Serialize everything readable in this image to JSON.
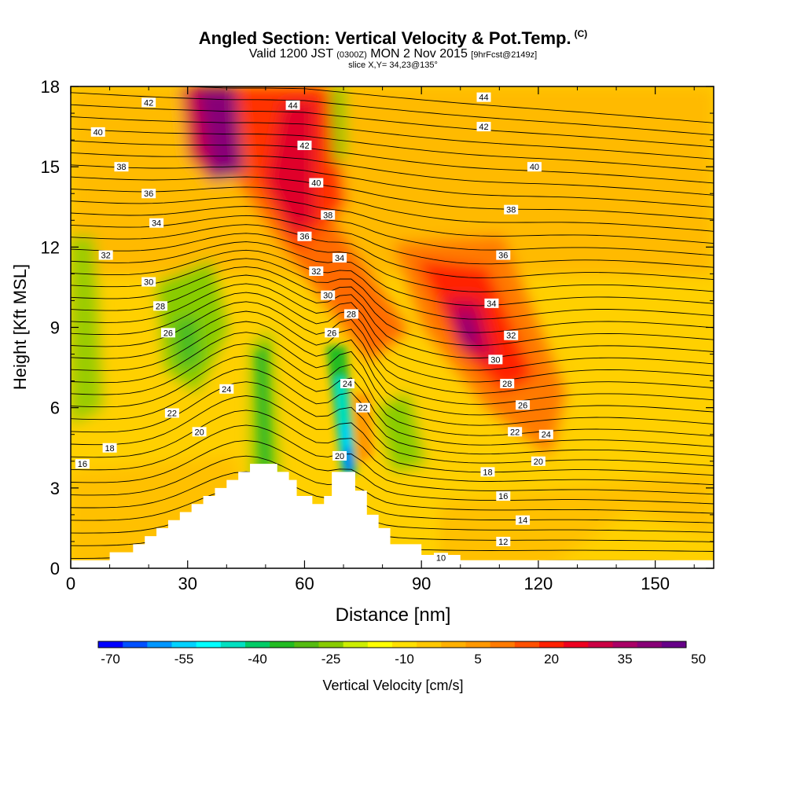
{
  "title": {
    "main": "Angled Section: Vertical Velocity & Pot.Temp.",
    "units_tag": "(C)",
    "valid_prefix": "Valid 1200 JST",
    "valid_utc": "(0300Z)",
    "valid_date": "MON 2 Nov 2015",
    "forecast": "[9hrFcst@2149z]",
    "slice": "slice X,Y= 34,23@135°"
  },
  "chart_data": {
    "type": "heatmap",
    "xlabel": "Distance [nm]",
    "ylabel": "Height [Kft MSL]",
    "xlim": [
      0,
      165
    ],
    "ylim": [
      0,
      18
    ],
    "x_ticks": [
      "0",
      "30",
      "60",
      "90",
      "120",
      "150"
    ],
    "y_ticks": [
      "0",
      "3",
      "6",
      "9",
      "12",
      "15",
      "18"
    ],
    "colorbar": {
      "label": "Vertical Velocity [cm/s]",
      "tick_labels": [
        "-70",
        "-55",
        "-40",
        "-25",
        "-10",
        "5",
        "20",
        "35",
        "50"
      ],
      "colors": [
        "#0000ff",
        "#0050ff",
        "#0096ff",
        "#00d2ff",
        "#00ffff",
        "#00e0c0",
        "#00cc66",
        "#22bb22",
        "#55bb11",
        "#88cc00",
        "#ccee00",
        "#ffff00",
        "#ffe000",
        "#ffc800",
        "#ffb000",
        "#ff9800",
        "#ff7a00",
        "#ff5000",
        "#ff2000",
        "#ee0020",
        "#cc0044",
        "#aa0066",
        "#880077",
        "#660088"
      ]
    },
    "terrain": [
      [
        0,
        0.3
      ],
      [
        10,
        0.3
      ],
      [
        10,
        0.6
      ],
      [
        16,
        0.6
      ],
      [
        16,
        0.9
      ],
      [
        19,
        0.9
      ],
      [
        19,
        1.2
      ],
      [
        22,
        1.2
      ],
      [
        22,
        1.5
      ],
      [
        25,
        1.5
      ],
      [
        25,
        1.8
      ],
      [
        28,
        1.8
      ],
      [
        28,
        2.1
      ],
      [
        31,
        2.1
      ],
      [
        31,
        2.4
      ],
      [
        34,
        2.4
      ],
      [
        34,
        2.7
      ],
      [
        37,
        2.7
      ],
      [
        37,
        3.0
      ],
      [
        40,
        3.0
      ],
      [
        40,
        3.3
      ],
      [
        43,
        3.3
      ],
      [
        43,
        3.6
      ],
      [
        46,
        3.6
      ],
      [
        46,
        3.9
      ],
      [
        53,
        3.9
      ],
      [
        53,
        3.6
      ],
      [
        56,
        3.6
      ],
      [
        56,
        3.3
      ],
      [
        58,
        3.3
      ],
      [
        58,
        2.7
      ],
      [
        62,
        2.7
      ],
      [
        62,
        2.4
      ],
      [
        65,
        2.4
      ],
      [
        65,
        2.7
      ],
      [
        67,
        2.7
      ],
      [
        67,
        3.6
      ],
      [
        73,
        3.6
      ],
      [
        73,
        2.9
      ],
      [
        76,
        2.9
      ],
      [
        76,
        2.0
      ],
      [
        79,
        2.0
      ],
      [
        79,
        1.5
      ],
      [
        82,
        1.5
      ],
      [
        82,
        0.9
      ],
      [
        90,
        0.9
      ],
      [
        90,
        0.5
      ],
      [
        100,
        0.5
      ],
      [
        100,
        0.3
      ],
      [
        165,
        0.3
      ]
    ],
    "isentrope_labels": [
      {
        "x": 20,
        "y": 17.4,
        "v": "42"
      },
      {
        "x": 7,
        "y": 16.3,
        "v": "40"
      },
      {
        "x": 13,
        "y": 15.0,
        "v": "38"
      },
      {
        "x": 20,
        "y": 14.0,
        "v": "36"
      },
      {
        "x": 22,
        "y": 12.9,
        "v": "34"
      },
      {
        "x": 9,
        "y": 11.7,
        "v": "32"
      },
      {
        "x": 20,
        "y": 10.7,
        "v": "30"
      },
      {
        "x": 23,
        "y": 9.8,
        "v": "28"
      },
      {
        "x": 25,
        "y": 8.8,
        "v": "26"
      },
      {
        "x": 40,
        "y": 6.7,
        "v": "24"
      },
      {
        "x": 26,
        "y": 5.8,
        "v": "22"
      },
      {
        "x": 33,
        "y": 5.1,
        "v": "20"
      },
      {
        "x": 10,
        "y": 4.5,
        "v": "18"
      },
      {
        "x": 3,
        "y": 3.9,
        "v": "16"
      },
      {
        "x": 57,
        "y": 17.3,
        "v": "44"
      },
      {
        "x": 60,
        "y": 15.8,
        "v": "42"
      },
      {
        "x": 63,
        "y": 14.4,
        "v": "40"
      },
      {
        "x": 66,
        "y": 13.2,
        "v": "38"
      },
      {
        "x": 60,
        "y": 12.4,
        "v": "36"
      },
      {
        "x": 69,
        "y": 11.6,
        "v": "34"
      },
      {
        "x": 63,
        "y": 11.1,
        "v": "32"
      },
      {
        "x": 66,
        "y": 10.2,
        "v": "30"
      },
      {
        "x": 72,
        "y": 9.5,
        "v": "28"
      },
      {
        "x": 67,
        "y": 8.8,
        "v": "26"
      },
      {
        "x": 71,
        "y": 6.9,
        "v": "24"
      },
      {
        "x": 75,
        "y": 6.0,
        "v": "22"
      },
      {
        "x": 69,
        "y": 4.2,
        "v": "20"
      },
      {
        "x": 106,
        "y": 17.6,
        "v": "44"
      },
      {
        "x": 106,
        "y": 16.5,
        "v": "42"
      },
      {
        "x": 119,
        "y": 15.0,
        "v": "40"
      },
      {
        "x": 113,
        "y": 13.4,
        "v": "38"
      },
      {
        "x": 111,
        "y": 11.7,
        "v": "36"
      },
      {
        "x": 108,
        "y": 9.9,
        "v": "34"
      },
      {
        "x": 113,
        "y": 8.7,
        "v": "32"
      },
      {
        "x": 109,
        "y": 7.8,
        "v": "30"
      },
      {
        "x": 112,
        "y": 6.9,
        "v": "28"
      },
      {
        "x": 116,
        "y": 6.1,
        "v": "26"
      },
      {
        "x": 122,
        "y": 5.0,
        "v": "24"
      },
      {
        "x": 114,
        "y": 5.1,
        "v": "22"
      },
      {
        "x": 120,
        "y": 4.0,
        "v": "20"
      },
      {
        "x": 107,
        "y": 3.6,
        "v": "18"
      },
      {
        "x": 111,
        "y": 2.7,
        "v": "16"
      },
      {
        "x": 116,
        "y": 1.8,
        "v": "14"
      },
      {
        "x": 111,
        "y": 1.0,
        "v": "12"
      },
      {
        "x": 95,
        "y": 0.4,
        "v": "10"
      }
    ]
  }
}
